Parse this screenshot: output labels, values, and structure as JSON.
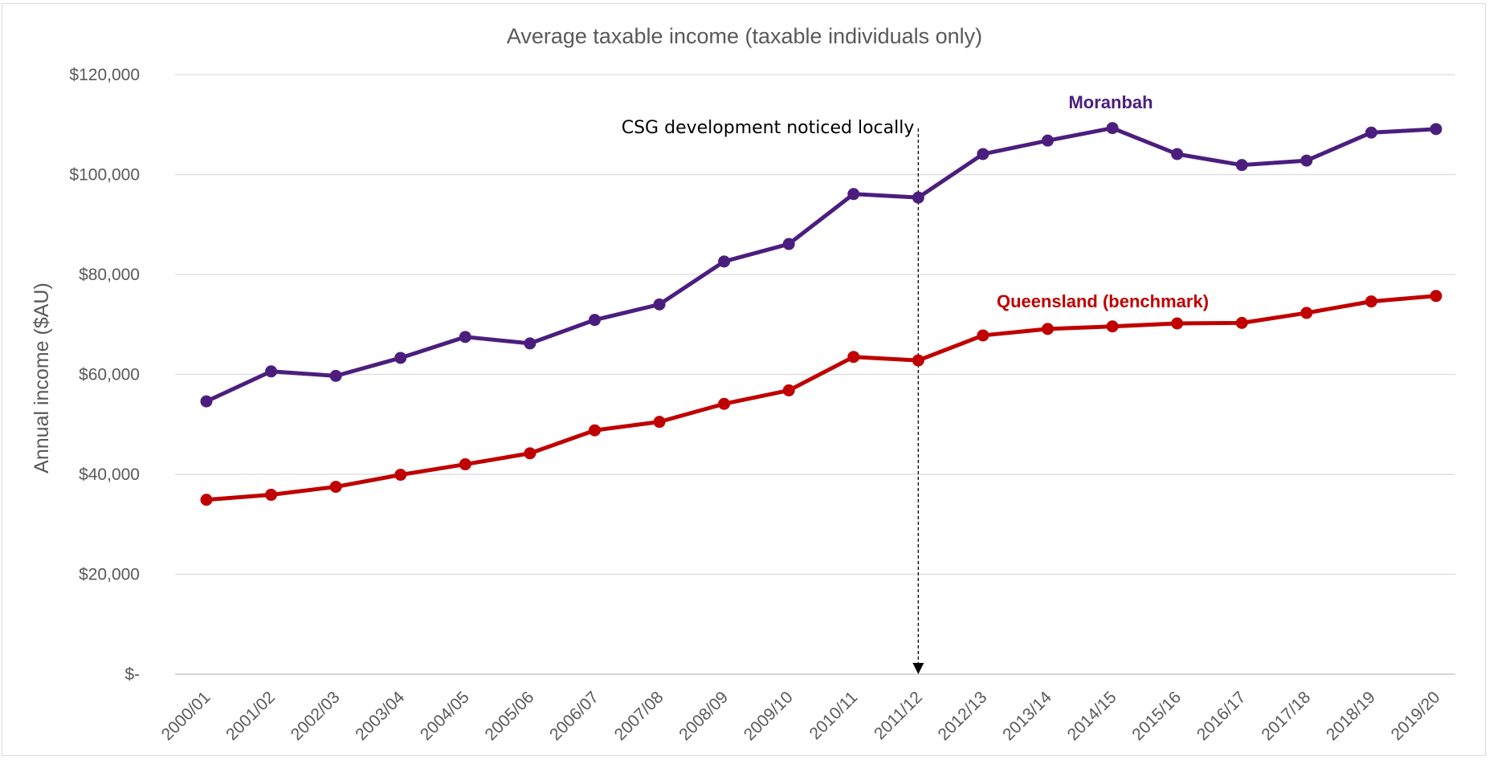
{
  "chart_data": {
    "type": "line",
    "title": "Average taxable income (taxable individuals only)",
    "ylabel": "Annual income ($AU)",
    "xlabel": "",
    "ylim": [
      0,
      120000
    ],
    "yticks": [
      0,
      20000,
      40000,
      60000,
      80000,
      100000,
      120000
    ],
    "ytick_labels": [
      "$-",
      "$20,000",
      "$40,000",
      "$60,000",
      "$80,000",
      "$100,000",
      "$120,000"
    ],
    "grid": "horizontal",
    "categories": [
      "2000/01",
      "2001/02",
      "2002/03",
      "2003/04",
      "2004/05",
      "2005/06",
      "2006/07",
      "2007/08",
      "2008/09",
      "2009/10",
      "2010/11",
      "2011/12",
      "2012/13",
      "2013/14",
      "2014/15",
      "2015/16",
      "2016/17",
      "2017/18",
      "2018/19",
      "2019/20"
    ],
    "series": [
      {
        "name": "Moranbah",
        "color": "#4b1e7e",
        "values": [
          54600,
          60600,
          59700,
          63300,
          67500,
          66200,
          70900,
          74000,
          82600,
          86100,
          96100,
          95400,
          104100,
          106800,
          109300,
          104100,
          101900,
          102800,
          108400,
          109100
        ]
      },
      {
        "name": "Queensland (benchmark)",
        "color": "#c00000",
        "values": [
          34900,
          35900,
          37500,
          39900,
          42000,
          44200,
          48800,
          50500,
          54100,
          56800,
          63500,
          62800,
          67800,
          69100,
          69600,
          70200,
          70300,
          72300,
          74600,
          75700
        ]
      }
    ],
    "annotation": {
      "text": "CSG development noticed locally",
      "x_category": "2011/12"
    }
  }
}
